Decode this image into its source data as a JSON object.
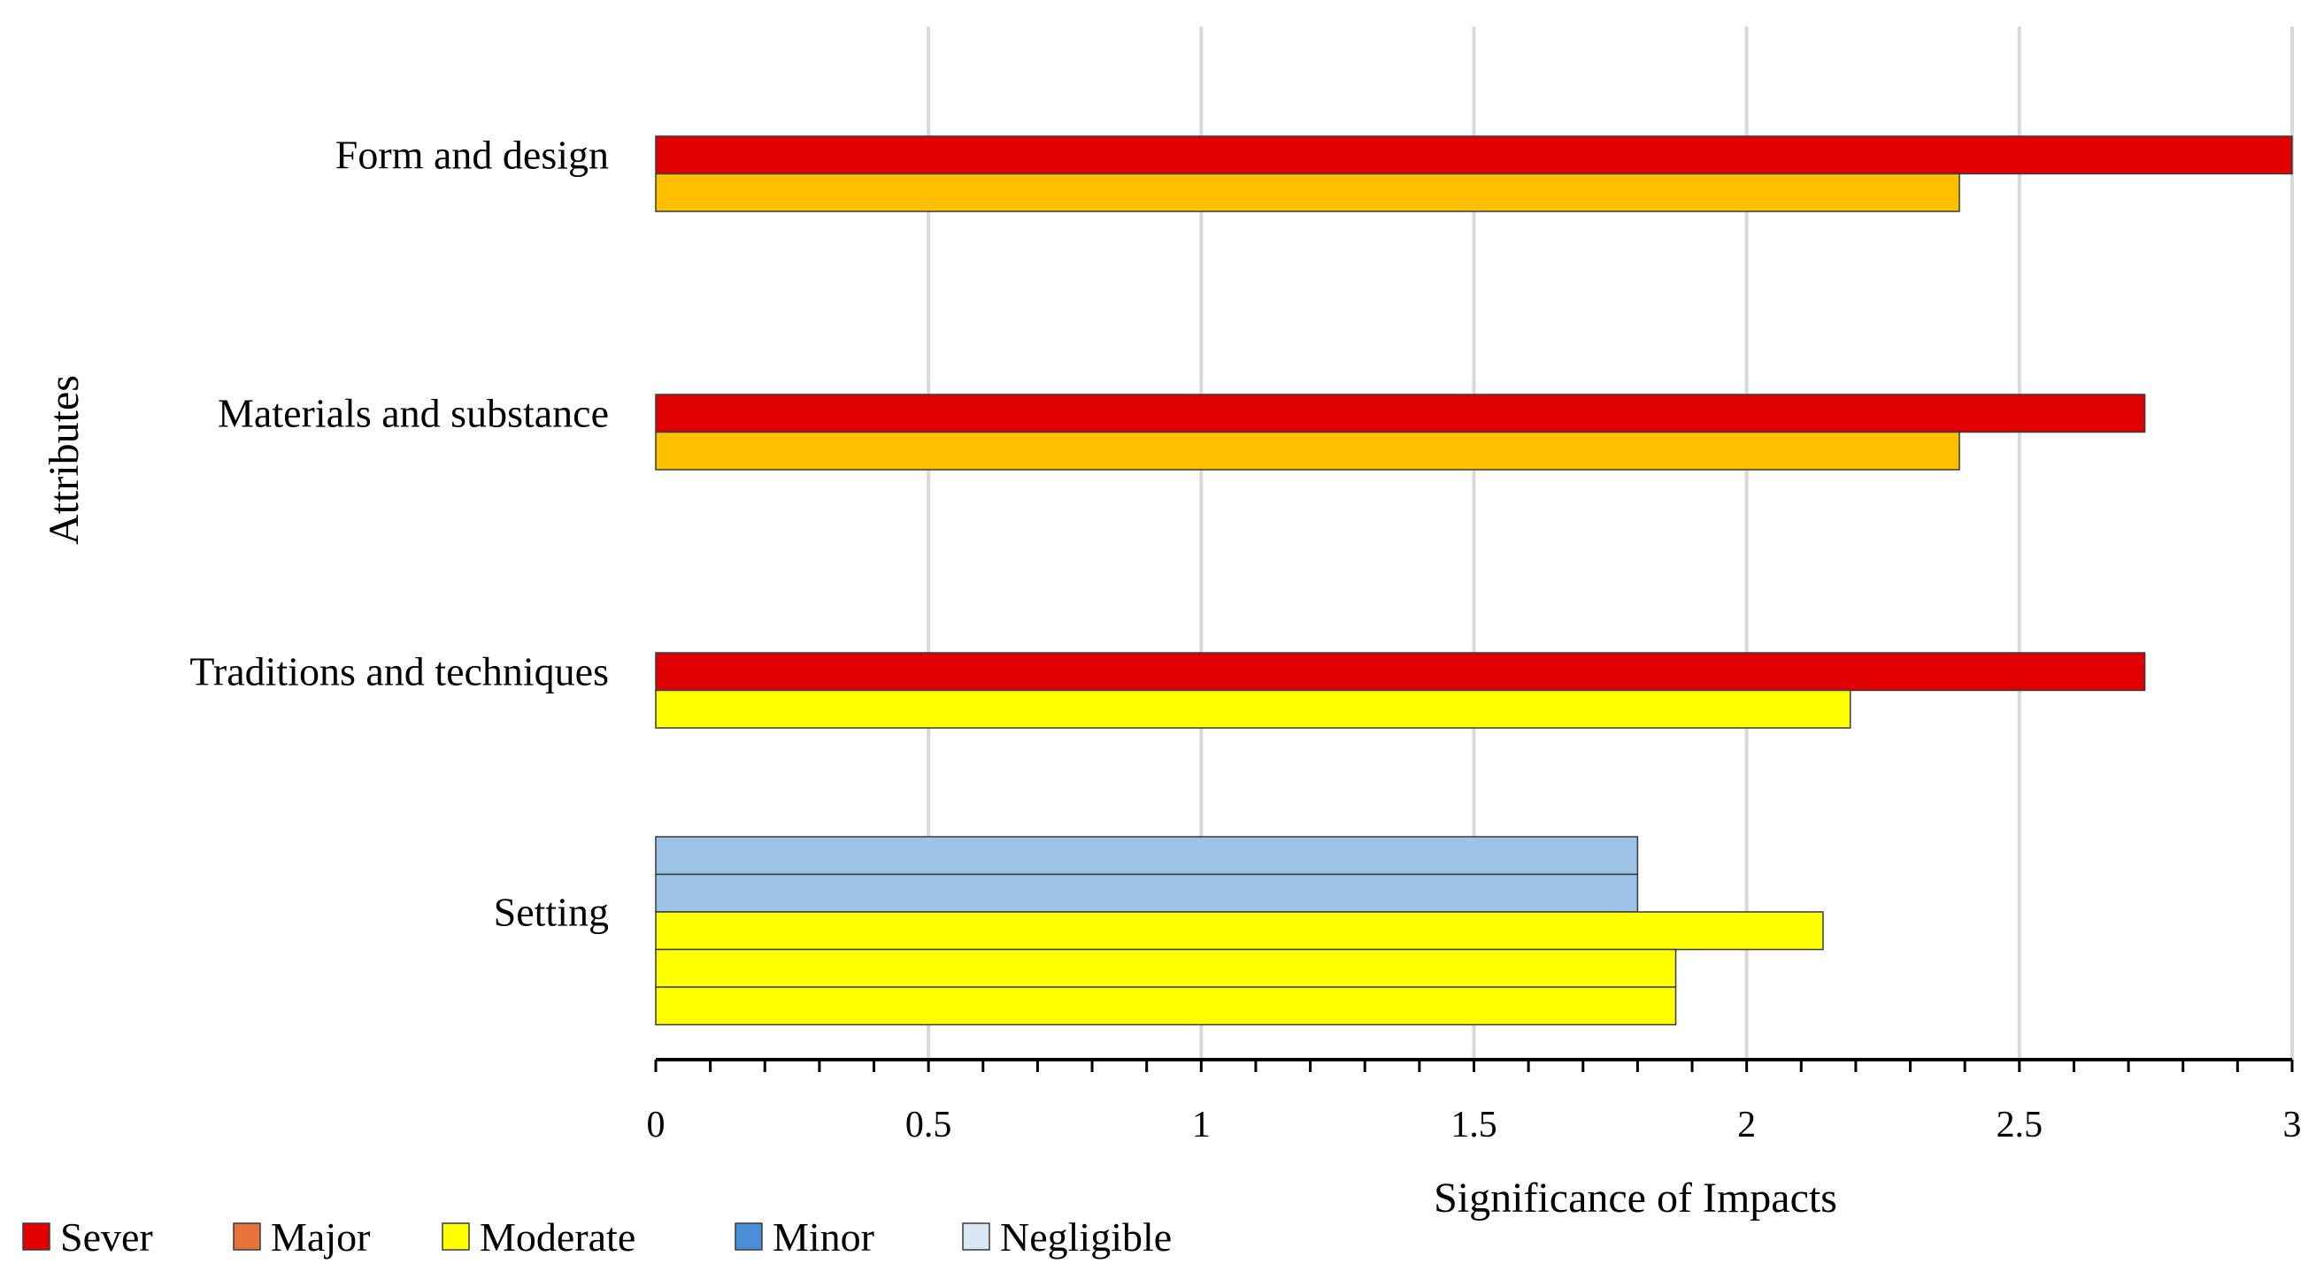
{
  "chart_data": {
    "type": "bar",
    "orientation": "horizontal",
    "title": "",
    "xlabel": "Significance of Impacts",
    "ylabel": "Attributes",
    "xlim": [
      0,
      3
    ],
    "xticks": [
      0,
      0.5,
      1,
      1.5,
      2,
      2.5,
      3
    ],
    "xtick_labels": [
      "0",
      "0.5",
      "1",
      "1.5",
      "2",
      "2.5",
      "3"
    ],
    "grid": "vertical",
    "legend_position": "bottom-left",
    "legend": [
      {
        "name": "Sever",
        "color": "#e00000"
      },
      {
        "name": "Major",
        "color": "#e6743a"
      },
      {
        "name": "Moderate",
        "color": "#ffff00"
      },
      {
        "name": "Minor",
        "color": "#4a8fd6"
      },
      {
        "name": "Negligible",
        "color": "#dae6f4"
      }
    ],
    "categories": [
      {
        "name": "Form and design",
        "bars": [
          {
            "value": 3.0,
            "color": "#e00000"
          },
          {
            "value": 2.39,
            "color": "#ffc000"
          }
        ]
      },
      {
        "name": "Materials and substance",
        "bars": [
          {
            "value": 2.73,
            "color": "#e00000"
          },
          {
            "value": 2.39,
            "color": "#ffc000"
          }
        ]
      },
      {
        "name": "Traditions and techniques",
        "bars": [
          {
            "value": 2.73,
            "color": "#e00000"
          },
          {
            "value": 2.19,
            "color": "#ffff00"
          }
        ]
      },
      {
        "name": "Setting",
        "bars": [
          {
            "value": 1.8,
            "color": "#9dc3e6"
          },
          {
            "value": 1.8,
            "color": "#9dc3e6"
          },
          {
            "value": 2.14,
            "color": "#ffff00"
          },
          {
            "value": 1.87,
            "color": "#ffff00"
          },
          {
            "value": 1.87,
            "color": "#ffff00"
          }
        ]
      }
    ]
  }
}
